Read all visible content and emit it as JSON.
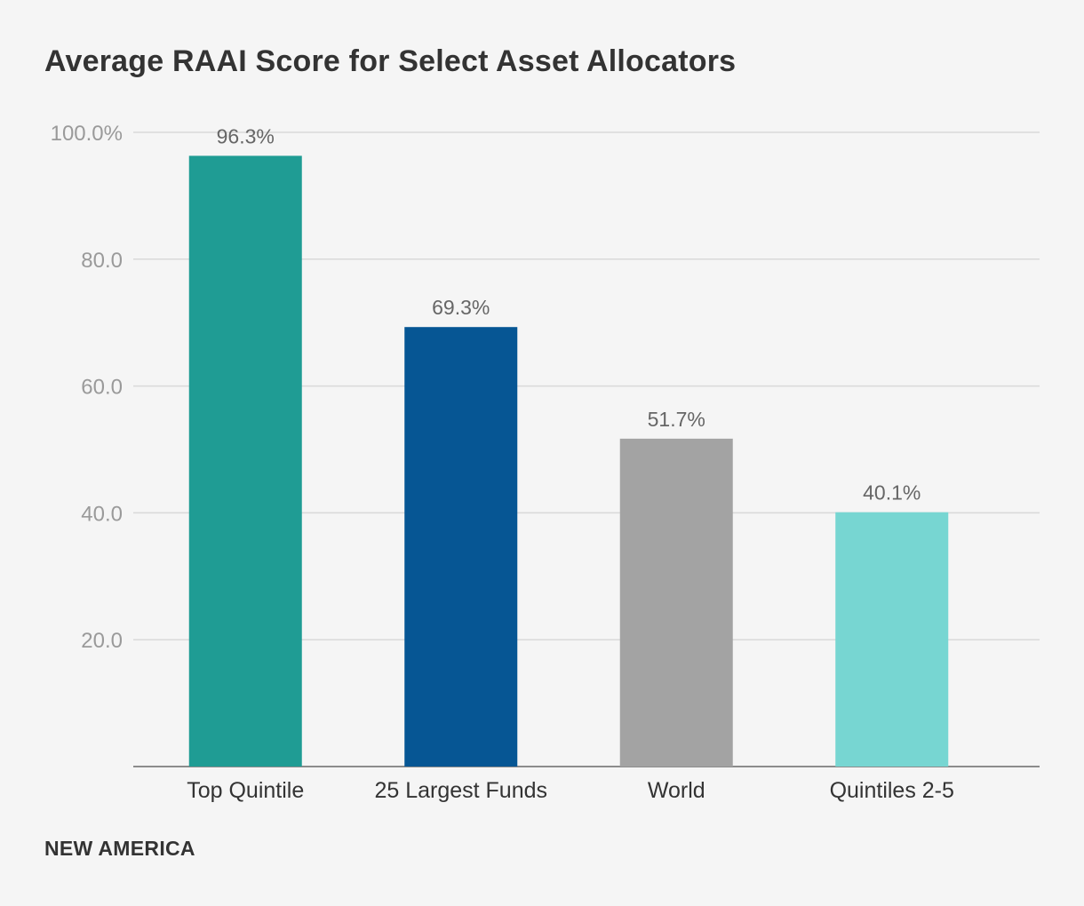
{
  "title": "Average RAAI Score for Select Asset Allocators",
  "footer": {
    "brand": "NEW AMERICA"
  },
  "chart_data": {
    "type": "bar",
    "title": "Average RAAI Score for Select Asset Allocators",
    "xlabel": "",
    "ylabel": "",
    "categories": [
      "Top Quintile",
      "25 Largest Funds",
      "World",
      "Quintiles 2-5"
    ],
    "values": [
      96.3,
      69.3,
      51.7,
      40.1
    ],
    "value_labels": [
      "96.3%",
      "69.3%",
      "51.7%",
      "40.1%"
    ],
    "colors": [
      "#1f9c94",
      "#065694",
      "#a3a3a3",
      "#77d6d2"
    ],
    "ylim": [
      0,
      100
    ],
    "yticks": [
      20,
      40,
      60,
      80,
      100
    ],
    "ytick_labels": [
      "20.0",
      "40.0",
      "60.0",
      "80.0",
      "100.0%"
    ],
    "grid": true,
    "legend": "none"
  }
}
